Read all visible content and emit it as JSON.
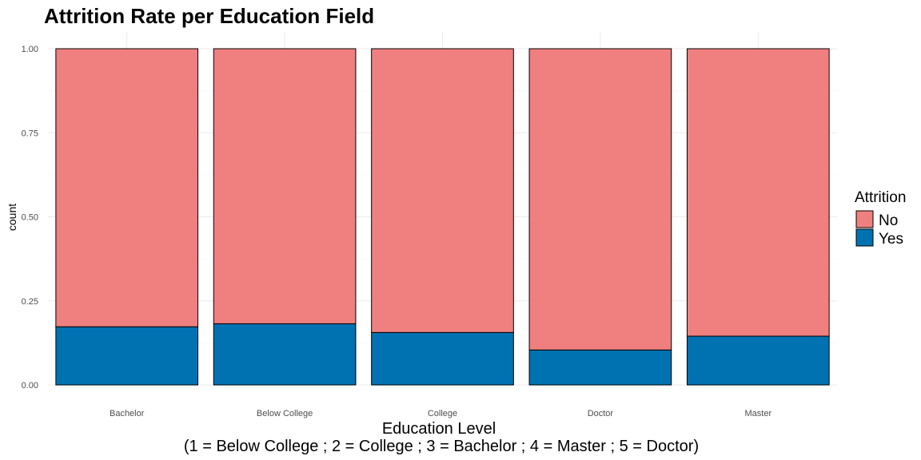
{
  "chart_data": {
    "type": "bar",
    "stacked": true,
    "title": "Attrition Rate per Education Field",
    "xlabel": "Education Level",
    "xlabel_sub": "(1 = Below College ; 2 = College ; 3 = Bachelor ; 4 = Master ; 5 = Doctor)",
    "ylabel": "count",
    "ylim": [
      0,
      1
    ],
    "yticks": [
      "0.00",
      "0.25",
      "0.50",
      "0.75",
      "1.00"
    ],
    "categories": [
      "Bachelor",
      "Below College",
      "College",
      "Doctor",
      "Master"
    ],
    "series": [
      {
        "name": "No",
        "color": "#F08080",
        "values": [
          0.827,
          0.818,
          0.844,
          0.896,
          0.855
        ]
      },
      {
        "name": "Yes",
        "color": "#0072B2",
        "values": [
          0.173,
          0.182,
          0.156,
          0.104,
          0.145
        ]
      }
    ],
    "legend": {
      "title": "Attrition",
      "position": "right"
    },
    "grid": true
  }
}
